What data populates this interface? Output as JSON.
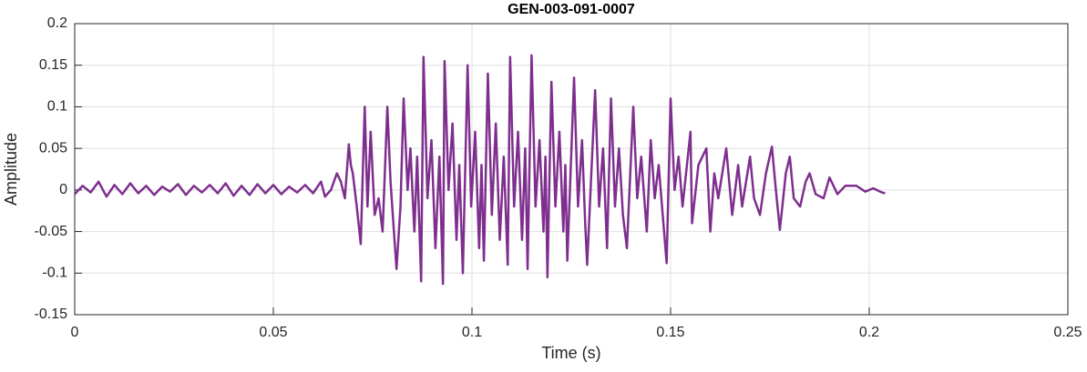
{
  "chart_data": {
    "type": "line",
    "title": "GEN-003-091-0007",
    "xlabel": "Time (s)",
    "ylabel": "Amplitude",
    "color": "#7e2f8e",
    "grid": true,
    "xlim": [
      0,
      0.25
    ],
    "xticks": [
      0,
      0.05,
      0.1,
      0.15,
      0.2,
      0.25
    ],
    "ylim": [
      -0.15,
      0.2
    ],
    "yticks": [
      -0.15,
      -0.1,
      -0.05,
      0,
      0.05,
      0.1,
      0.15,
      0.2
    ],
    "x": [
      0,
      0.002,
      0.004,
      0.006,
      0.008,
      0.01,
      0.012,
      0.014,
      0.016,
      0.018,
      0.02,
      0.022,
      0.024,
      0.026,
      0.028,
      0.03,
      0.032,
      0.034,
      0.036,
      0.038,
      0.04,
      0.042,
      0.044,
      0.046,
      0.048,
      0.05,
      0.052,
      0.054,
      0.056,
      0.058,
      0.06,
      0.062,
      0.063,
      0.0645,
      0.066,
      0.067,
      0.068,
      0.069,
      0.0695,
      0.07,
      0.071,
      0.072,
      0.073,
      0.0737,
      0.0745,
      0.0755,
      0.0765,
      0.0775,
      0.0787,
      0.0795,
      0.081,
      0.082,
      0.0828,
      0.0838,
      0.0845,
      0.0855,
      0.0862,
      0.0872,
      0.0878,
      0.0888,
      0.0898,
      0.0908,
      0.0918,
      0.0927,
      0.0931,
      0.0941,
      0.0951,
      0.0961,
      0.0968,
      0.0977,
      0.0989,
      0.0998,
      0.1008,
      0.1018,
      0.1024,
      0.103,
      0.104,
      0.105,
      0.106,
      0.107,
      0.108,
      0.109,
      0.1096,
      0.1106,
      0.1116,
      0.1126,
      0.1134,
      0.114,
      0.115,
      0.116,
      0.117,
      0.118,
      0.1185,
      0.119,
      0.12,
      0.121,
      0.122,
      0.123,
      0.1235,
      0.124,
      0.1257,
      0.1267,
      0.1277,
      0.1285,
      0.129,
      0.131,
      0.132,
      0.133,
      0.134,
      0.135,
      0.136,
      0.137,
      0.138,
      0.139,
      0.1406,
      0.1416,
      0.1426,
      0.144,
      0.145,
      0.146,
      0.147,
      0.149,
      0.15,
      0.151,
      0.152,
      0.153,
      0.155,
      0.1554,
      0.157,
      0.159,
      0.16,
      0.161,
      0.162,
      0.164,
      0.1655,
      0.167,
      0.168,
      0.17,
      0.171,
      0.1725,
      0.174,
      0.1755,
      0.1765,
      0.1775,
      0.179,
      0.18,
      0.181,
      0.1826,
      0.184,
      0.185,
      0.1865,
      0.1885,
      0.19,
      0.192,
      0.194,
      0.1968,
      0.199,
      0.201,
      0.2032,
      0.204
    ],
    "values": [
      -0.005,
      0.005,
      -0.003,
      0.01,
      -0.008,
      0.006,
      -0.005,
      0.008,
      -0.004,
      0.005,
      -0.006,
      0.004,
      -0.002,
      0.007,
      -0.006,
      0.005,
      -0.003,
      0.006,
      -0.004,
      0.008,
      -0.007,
      0.005,
      -0.006,
      0.007,
      -0.004,
      0.006,
      -0.005,
      0.004,
      -0.003,
      0.006,
      -0.004,
      0.01,
      -0.008,
      0.0,
      0.02,
      0.01,
      -0.01,
      0.055,
      0.03,
      0.02,
      -0.02,
      -0.065,
      0.1,
      -0.02,
      0.07,
      -0.03,
      -0.01,
      -0.05,
      0.1,
      0.01,
      -0.095,
      -0.02,
      0.11,
      0.0,
      0.05,
      -0.05,
      0.04,
      -0.11,
      0.16,
      -0.01,
      0.06,
      -0.07,
      0.04,
      -0.113,
      0.155,
      0.0,
      0.08,
      -0.06,
      0.03,
      -0.1,
      0.15,
      -0.02,
      0.07,
      -0.07,
      0.03,
      -0.085,
      0.14,
      -0.03,
      0.08,
      -0.06,
      0.04,
      -0.09,
      0.16,
      -0.02,
      0.07,
      -0.06,
      0.05,
      -0.095,
      0.162,
      -0.02,
      0.06,
      -0.05,
      0.04,
      -0.105,
      0.13,
      -0.02,
      0.07,
      -0.05,
      0.03,
      -0.085,
      0.135,
      -0.02,
      0.06,
      -0.04,
      -0.09,
      0.12,
      -0.02,
      0.05,
      -0.07,
      0.11,
      -0.02,
      0.05,
      -0.03,
      -0.07,
      0.1,
      -0.01,
      0.04,
      -0.05,
      0.06,
      -0.01,
      0.03,
      -0.088,
      0.11,
      0.0,
      0.04,
      -0.02,
      0.07,
      -0.04,
      0.03,
      0.05,
      -0.05,
      0.02,
      -0.01,
      0.05,
      -0.03,
      0.03,
      -0.02,
      0.04,
      -0.01,
      -0.03,
      0.02,
      0.052,
      0.0,
      -0.048,
      0.02,
      0.04,
      -0.01,
      -0.02,
      0.01,
      0.02,
      -0.005,
      -0.01,
      0.015,
      -0.005,
      0.005,
      0.005,
      -0.002,
      0.002,
      -0.003,
      -0.004
    ]
  }
}
